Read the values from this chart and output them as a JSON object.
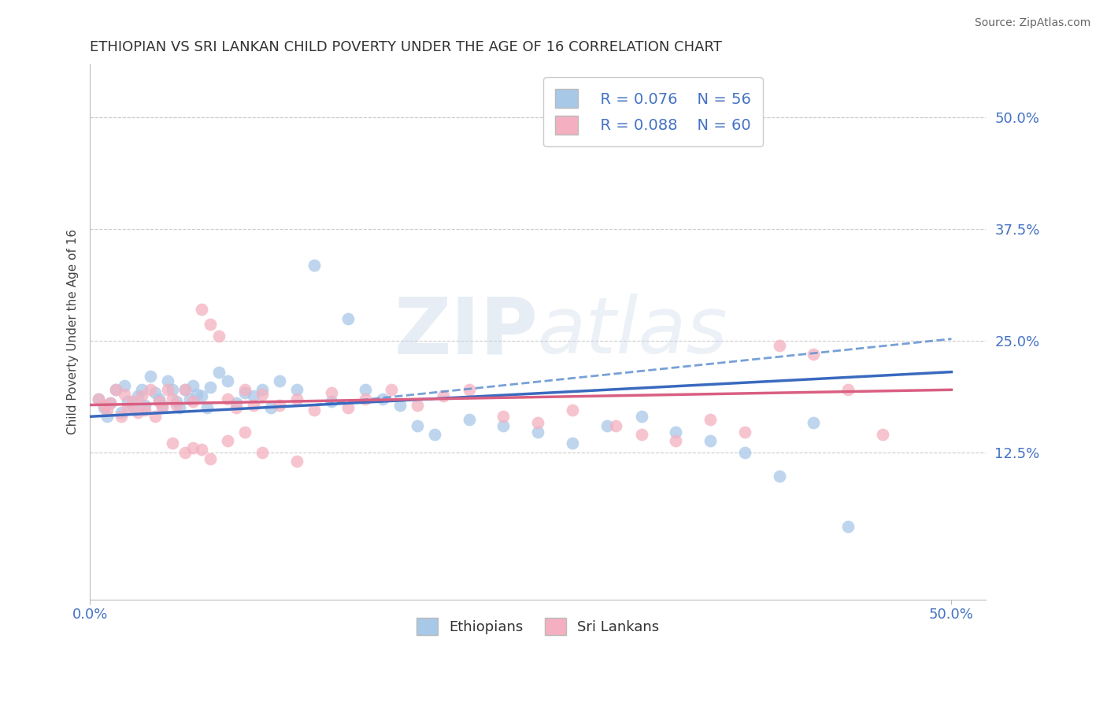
{
  "title": "ETHIOPIAN VS SRI LANKAN CHILD POVERTY UNDER THE AGE OF 16 CORRELATION CHART",
  "source": "Source: ZipAtlas.com",
  "ylabel": "Child Poverty Under the Age of 16",
  "xlim": [
    0.0,
    0.52
  ],
  "ylim": [
    -0.04,
    0.56
  ],
  "yticks_right": [
    0.125,
    0.25,
    0.375,
    0.5
  ],
  "ytick_right_labels": [
    "12.5%",
    "25.0%",
    "37.5%",
    "50.0%"
  ],
  "grid_color": "#cccccc",
  "background_color": "#ffffff",
  "ethiopian_color": "#a8c8e8",
  "srilanka_color": "#f4b0c0",
  "ethiopian_line_color": "#3a6abf",
  "srilanka_line_color": "#d95f82",
  "dashed_line_color": "#6090d0",
  "legend_R_ethiopian": "0.076",
  "legend_N_ethiopian": "56",
  "legend_R_srilanka": "0.088",
  "legend_N_srilanka": "60",
  "watermark": "ZIPatlas",
  "eth_line_x0": 0.0,
  "eth_line_y0": 0.165,
  "eth_line_x1": 0.5,
  "eth_line_y1": 0.215,
  "sl_line_x0": 0.0,
  "sl_line_y0": 0.178,
  "sl_line_x1": 0.5,
  "sl_line_y1": 0.195,
  "dash_line_x0": 0.13,
  "dash_line_y0": 0.178,
  "dash_line_x1": 0.5,
  "dash_line_y1": 0.252,
  "ethiopians_x": [
    0.005,
    0.008,
    0.01,
    0.012,
    0.015,
    0.018,
    0.02,
    0.022,
    0.025,
    0.028,
    0.03,
    0.032,
    0.035,
    0.038,
    0.04,
    0.042,
    0.045,
    0.048,
    0.05,
    0.052,
    0.055,
    0.058,
    0.06,
    0.062,
    0.065,
    0.068,
    0.07,
    0.075,
    0.08,
    0.085,
    0.09,
    0.095,
    0.1,
    0.105,
    0.11,
    0.12,
    0.13,
    0.14,
    0.15,
    0.16,
    0.17,
    0.18,
    0.19,
    0.2,
    0.22,
    0.24,
    0.26,
    0.28,
    0.3,
    0.32,
    0.34,
    0.36,
    0.38,
    0.4,
    0.42,
    0.44
  ],
  "ethiopians_y": [
    0.185,
    0.175,
    0.165,
    0.18,
    0.195,
    0.17,
    0.2,
    0.182,
    0.175,
    0.188,
    0.195,
    0.178,
    0.21,
    0.192,
    0.185,
    0.178,
    0.205,
    0.195,
    0.182,
    0.175,
    0.195,
    0.185,
    0.2,
    0.19,
    0.188,
    0.175,
    0.198,
    0.215,
    0.205,
    0.18,
    0.192,
    0.188,
    0.195,
    0.175,
    0.205,
    0.195,
    0.335,
    0.182,
    0.275,
    0.195,
    0.185,
    0.178,
    0.155,
    0.145,
    0.162,
    0.155,
    0.148,
    0.135,
    0.155,
    0.165,
    0.148,
    0.138,
    0.125,
    0.098,
    0.158,
    0.042
  ],
  "srilanka_x": [
    0.005,
    0.008,
    0.01,
    0.012,
    0.015,
    0.018,
    0.02,
    0.022,
    0.025,
    0.028,
    0.03,
    0.032,
    0.035,
    0.038,
    0.04,
    0.042,
    0.045,
    0.048,
    0.05,
    0.055,
    0.06,
    0.065,
    0.07,
    0.075,
    0.08,
    0.085,
    0.09,
    0.095,
    0.1,
    0.11,
    0.12,
    0.13,
    0.14,
    0.15,
    0.16,
    0.175,
    0.19,
    0.205,
    0.22,
    0.24,
    0.26,
    0.28,
    0.305,
    0.32,
    0.34,
    0.36,
    0.38,
    0.4,
    0.42,
    0.44,
    0.46,
    0.048,
    0.055,
    0.06,
    0.065,
    0.07,
    0.08,
    0.09,
    0.1,
    0.12
  ],
  "srilanka_y": [
    0.185,
    0.178,
    0.172,
    0.18,
    0.195,
    0.165,
    0.19,
    0.175,
    0.182,
    0.17,
    0.188,
    0.172,
    0.195,
    0.165,
    0.182,
    0.175,
    0.195,
    0.185,
    0.178,
    0.195,
    0.182,
    0.285,
    0.268,
    0.255,
    0.185,
    0.175,
    0.195,
    0.178,
    0.19,
    0.178,
    0.185,
    0.172,
    0.192,
    0.175,
    0.185,
    0.195,
    0.178,
    0.188,
    0.195,
    0.165,
    0.158,
    0.172,
    0.155,
    0.145,
    0.138,
    0.162,
    0.148,
    0.245,
    0.235,
    0.195,
    0.145,
    0.135,
    0.125,
    0.13,
    0.128,
    0.118,
    0.138,
    0.148,
    0.125,
    0.115
  ]
}
